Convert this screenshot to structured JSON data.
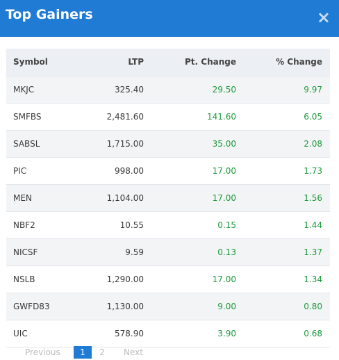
{
  "header": {
    "title": "Top Gainers",
    "close": "×"
  },
  "table": {
    "columns": [
      "Symbol",
      "LTP",
      "Pt. Change",
      "% Change"
    ],
    "rows": [
      [
        "MKJC",
        "325.40",
        "29.50",
        "9.97"
      ],
      [
        "SMFBS",
        "2,481.60",
        "141.60",
        "6.05"
      ],
      [
        "SABSL",
        "1,715.00",
        "35.00",
        "2.08"
      ],
      [
        "PIC",
        "998.00",
        "17.00",
        "1.73"
      ],
      [
        "MEN",
        "1,104.00",
        "17.00",
        "1.56"
      ],
      [
        "NBF2",
        "10.55",
        "0.15",
        "1.44"
      ],
      [
        "NICSF",
        "9.59",
        "0.13",
        "1.37"
      ],
      [
        "NSLB",
        "1,290.00",
        "17.00",
        "1.34"
      ],
      [
        "GWFD83",
        "1,130.00",
        "9.00",
        "0.80"
      ],
      [
        "UIC",
        "578.90",
        "3.90",
        "0.68"
      ]
    ]
  },
  "pagination": {
    "previous": "Previous",
    "pages": [
      "1",
      "2"
    ],
    "next": "Next"
  }
}
